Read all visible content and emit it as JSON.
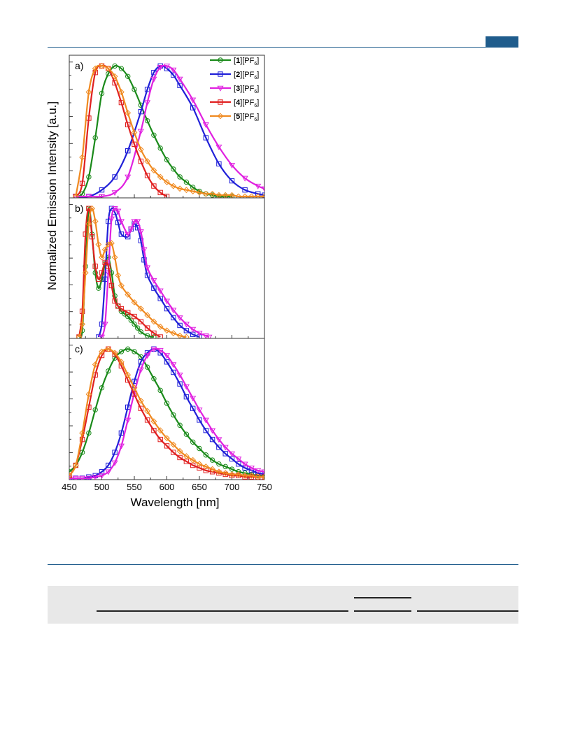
{
  "figure": {
    "ylabel": "Normalized Emission Intensity [a.u.]",
    "xlabel": "Wavelength [nm]",
    "x_ticks": [
      "450",
      "500",
      "550",
      "600",
      "650",
      "700",
      "750"
    ]
  },
  "legend": [
    {
      "bold": "1",
      "rest": "][PF",
      "sub": "6",
      "close": "]",
      "color": "#1a8a1a",
      "marker": "circle"
    },
    {
      "bold": "2",
      "rest": "][PF",
      "sub": "6",
      "close": "]",
      "color": "#2020d8",
      "marker": "square"
    },
    {
      "bold": "3",
      "rest": "][PF",
      "sub": "6",
      "close": "]",
      "color": "#e020e0",
      "marker": "triangle-down"
    },
    {
      "bold": "4",
      "rest": "][PF",
      "sub": "6",
      "close": "]",
      "color": "#e02020",
      "marker": "square"
    },
    {
      "bold": "5",
      "rest": "][PF",
      "sub": "6",
      "close": "]",
      "color": "#f08a20",
      "marker": "diamond"
    }
  ],
  "chart_data": [
    {
      "type": "line",
      "panel_label": "a)",
      "xlim": [
        450,
        750
      ],
      "ylim": [
        0,
        1.05
      ],
      "series": [
        {
          "name": "[1][PF6]",
          "color": "#1a8a1a",
          "marker": "circle",
          "x": [
            460,
            470,
            480,
            490,
            500,
            510,
            520,
            530,
            540,
            550,
            560,
            570,
            580,
            590,
            600,
            610,
            620,
            630,
            640,
            650,
            660,
            670,
            680,
            690,
            700
          ],
          "y": [
            0.0,
            0.02,
            0.15,
            0.45,
            0.79,
            0.94,
            1.0,
            0.98,
            0.92,
            0.82,
            0.7,
            0.58,
            0.47,
            0.37,
            0.28,
            0.21,
            0.15,
            0.11,
            0.07,
            0.04,
            0.02,
            0.01,
            0.0,
            0.0,
            0.0
          ]
        },
        {
          "name": "[2][PF6]",
          "color": "#2020d8",
          "marker": "square",
          "x": [
            460,
            480,
            500,
            520,
            540,
            560,
            570,
            580,
            590,
            600,
            610,
            620,
            640,
            660,
            680,
            700,
            720,
            740,
            750
          ],
          "y": [
            0.0,
            0.0,
            0.05,
            0.15,
            0.35,
            0.65,
            0.82,
            0.95,
            1.0,
            0.98,
            0.93,
            0.85,
            0.68,
            0.45,
            0.25,
            0.12,
            0.05,
            0.02,
            0.01
          ]
        },
        {
          "name": "[3][PF6]",
          "color": "#e020e0",
          "marker": "triangle-down",
          "x": [
            460,
            480,
            500,
            520,
            540,
            560,
            570,
            580,
            590,
            600,
            610,
            620,
            640,
            660,
            680,
            700,
            720,
            740,
            750
          ],
          "y": [
            0.0,
            0.0,
            0.0,
            0.03,
            0.15,
            0.5,
            0.72,
            0.9,
            0.99,
            1.0,
            0.97,
            0.9,
            0.74,
            0.55,
            0.38,
            0.24,
            0.14,
            0.08,
            0.06
          ]
        },
        {
          "name": "[4][PF6]",
          "color": "#e02020",
          "marker": "square",
          "x": [
            460,
            470,
            480,
            490,
            500,
            510,
            520,
            530,
            540,
            550,
            560,
            570,
            580,
            590,
            600
          ],
          "y": [
            0.0,
            0.1,
            0.6,
            0.95,
            1.0,
            0.98,
            0.87,
            0.72,
            0.55,
            0.4,
            0.27,
            0.16,
            0.08,
            0.03,
            0.0
          ]
        },
        {
          "name": "[5][PF6]",
          "color": "#f08a20",
          "marker": "diamond",
          "x": [
            460,
            470,
            480,
            490,
            500,
            510,
            520,
            530,
            540,
            550,
            560,
            570,
            580,
            590,
            600,
            610,
            620,
            630,
            640,
            650,
            660,
            670,
            680,
            690,
            700,
            710,
            720,
            730,
            740,
            750
          ],
          "y": [
            0.0,
            0.3,
            0.8,
            0.98,
            1.0,
            0.98,
            0.92,
            0.8,
            0.64,
            0.49,
            0.36,
            0.27,
            0.2,
            0.15,
            0.11,
            0.08,
            0.06,
            0.05,
            0.04,
            0.03,
            0.02,
            0.02,
            0.01,
            0.01,
            0.01,
            0.0,
            0.0,
            0.0,
            0.0,
            0.0
          ]
        }
      ]
    },
    {
      "type": "line",
      "panel_label": "b)",
      "xlim": [
        450,
        750
      ],
      "ylim": [
        0,
        1.05
      ],
      "series": [
        {
          "name": "[1][PF6]",
          "color": "#1a8a1a",
          "marker": "circle",
          "x": [
            465,
            470,
            475,
            480,
            485,
            490,
            495,
            500,
            505,
            510,
            515,
            520,
            525,
            530,
            535,
            540,
            545,
            550,
            555,
            560,
            570,
            580
          ],
          "y": [
            0.0,
            0.05,
            0.55,
            1.0,
            0.8,
            0.5,
            0.38,
            0.45,
            0.57,
            0.62,
            0.5,
            0.32,
            0.24,
            0.2,
            0.18,
            0.16,
            0.13,
            0.1,
            0.07,
            0.04,
            0.01,
            0.0
          ]
        },
        {
          "name": "[2][PF6]",
          "color": "#2020d8",
          "marker": "square",
          "x": [
            495,
            500,
            505,
            510,
            515,
            520,
            525,
            530,
            540,
            545,
            550,
            555,
            560,
            565,
            570,
            580,
            590,
            600,
            610,
            620,
            630,
            640,
            650
          ],
          "y": [
            0.0,
            0.1,
            0.45,
            0.9,
            1.0,
            0.97,
            0.89,
            0.8,
            0.78,
            0.84,
            0.88,
            0.85,
            0.75,
            0.6,
            0.48,
            0.38,
            0.3,
            0.22,
            0.15,
            0.09,
            0.05,
            0.02,
            0.0
          ]
        },
        {
          "name": "[3][PF6]",
          "color": "#e020e0",
          "marker": "triangle-down",
          "x": [
            500,
            505,
            510,
            515,
            520,
            525,
            530,
            540,
            545,
            550,
            555,
            560,
            565,
            570,
            580,
            590,
            600,
            610,
            620,
            630,
            640,
            650,
            660,
            665
          ],
          "y": [
            0.0,
            0.1,
            0.5,
            0.92,
            1.0,
            0.98,
            0.9,
            0.8,
            0.84,
            0.9,
            0.9,
            0.82,
            0.68,
            0.54,
            0.44,
            0.36,
            0.28,
            0.21,
            0.15,
            0.1,
            0.06,
            0.03,
            0.01,
            0.0
          ]
        },
        {
          "name": "[4][PF6]",
          "color": "#e02020",
          "marker": "square",
          "x": [
            465,
            470,
            475,
            480,
            485,
            490,
            495,
            500,
            505,
            510,
            515,
            520,
            525,
            530,
            540,
            550,
            560,
            570,
            580,
            590
          ],
          "y": [
            0.0,
            0.2,
            0.8,
            1.0,
            0.78,
            0.55,
            0.45,
            0.5,
            0.58,
            0.55,
            0.4,
            0.28,
            0.24,
            0.22,
            0.19,
            0.16,
            0.12,
            0.07,
            0.03,
            0.0
          ]
        },
        {
          "name": "[5][PF6]",
          "color": "#f08a20",
          "marker": "diamond",
          "x": [
            465,
            470,
            475,
            480,
            485,
            490,
            495,
            500,
            505,
            510,
            515,
            520,
            525,
            530,
            540,
            550,
            560,
            570,
            580,
            590,
            600,
            610,
            620,
            630
          ],
          "y": [
            0.0,
            0.1,
            0.5,
            0.88,
            1.0,
            0.9,
            0.72,
            0.62,
            0.68,
            0.72,
            0.73,
            0.62,
            0.48,
            0.4,
            0.33,
            0.27,
            0.22,
            0.17,
            0.12,
            0.08,
            0.05,
            0.03,
            0.01,
            0.0
          ]
        }
      ]
    },
    {
      "type": "line",
      "panel_label": "c)",
      "xlim": [
        450,
        750
      ],
      "ylim": [
        0,
        1.05
      ],
      "series": [
        {
          "name": "[1][PF6]",
          "color": "#1a8a1a",
          "marker": "circle",
          "x": [
            450,
            460,
            470,
            480,
            490,
            500,
            510,
            520,
            530,
            540,
            550,
            560,
            570,
            580,
            590,
            600,
            610,
            620,
            630,
            640,
            650,
            660,
            670,
            680,
            690,
            700,
            710,
            720,
            730,
            740,
            750
          ],
          "y": [
            0.05,
            0.1,
            0.2,
            0.35,
            0.53,
            0.7,
            0.83,
            0.93,
            0.98,
            1.0,
            0.98,
            0.94,
            0.86,
            0.77,
            0.68,
            0.58,
            0.49,
            0.41,
            0.34,
            0.28,
            0.23,
            0.18,
            0.14,
            0.11,
            0.09,
            0.07,
            0.05,
            0.04,
            0.03,
            0.02,
            0.02
          ]
        },
        {
          "name": "[2][PF6]",
          "color": "#2020d8",
          "marker": "square",
          "x": [
            450,
            460,
            470,
            480,
            490,
            500,
            510,
            520,
            530,
            540,
            550,
            560,
            570,
            580,
            590,
            600,
            610,
            620,
            630,
            640,
            650,
            660,
            670,
            680,
            690,
            700,
            710,
            720,
            730,
            740,
            750
          ],
          "y": [
            0.0,
            0.0,
            0.0,
            0.01,
            0.02,
            0.05,
            0.1,
            0.2,
            0.35,
            0.55,
            0.75,
            0.9,
            0.97,
            1.0,
            0.97,
            0.9,
            0.82,
            0.73,
            0.63,
            0.54,
            0.45,
            0.37,
            0.3,
            0.24,
            0.19,
            0.15,
            0.11,
            0.08,
            0.06,
            0.04,
            0.03
          ]
        },
        {
          "name": "[3][PF6]",
          "color": "#e020e0",
          "marker": "triangle-down",
          "x": [
            450,
            460,
            470,
            480,
            490,
            500,
            510,
            520,
            530,
            540,
            550,
            560,
            570,
            580,
            590,
            600,
            610,
            620,
            630,
            640,
            650,
            660,
            670,
            680,
            690,
            700,
            710,
            720,
            730,
            740,
            750
          ],
          "y": [
            0.0,
            0.0,
            0.0,
            0.0,
            0.01,
            0.02,
            0.05,
            0.12,
            0.25,
            0.45,
            0.66,
            0.84,
            0.95,
            1.0,
            0.99,
            0.95,
            0.88,
            0.8,
            0.71,
            0.62,
            0.53,
            0.45,
            0.37,
            0.3,
            0.24,
            0.19,
            0.15,
            0.11,
            0.08,
            0.06,
            0.05
          ]
        },
        {
          "name": "[4][PF6]",
          "color": "#e02020",
          "marker": "square",
          "x": [
            450,
            460,
            470,
            480,
            490,
            500,
            510,
            520,
            530,
            540,
            550,
            560,
            570,
            580,
            590,
            600,
            610,
            620,
            630,
            640,
            650,
            660,
            670,
            680,
            690,
            700,
            710,
            720,
            730,
            740,
            750
          ],
          "y": [
            0.02,
            0.1,
            0.3,
            0.55,
            0.8,
            0.95,
            1.0,
            0.96,
            0.87,
            0.76,
            0.65,
            0.54,
            0.45,
            0.37,
            0.3,
            0.25,
            0.2,
            0.16,
            0.13,
            0.1,
            0.08,
            0.06,
            0.05,
            0.04,
            0.03,
            0.02,
            0.02,
            0.01,
            0.01,
            0.01,
            0.01
          ]
        },
        {
          "name": "[5][PF6]",
          "color": "#f08a20",
          "marker": "diamond",
          "x": [
            450,
            460,
            470,
            480,
            490,
            500,
            510,
            520,
            530,
            540,
            550,
            560,
            570,
            580,
            590,
            600,
            610,
            620,
            630,
            640,
            650,
            660,
            670,
            680,
            690,
            700,
            710,
            720,
            730,
            740,
            750
          ],
          "y": [
            0.02,
            0.1,
            0.35,
            0.65,
            0.88,
            0.98,
            1.0,
            0.97,
            0.9,
            0.8,
            0.7,
            0.6,
            0.52,
            0.44,
            0.37,
            0.31,
            0.26,
            0.21,
            0.17,
            0.14,
            0.11,
            0.09,
            0.07,
            0.05,
            0.04,
            0.03,
            0.03,
            0.02,
            0.02,
            0.01,
            0.01
          ]
        }
      ]
    }
  ]
}
